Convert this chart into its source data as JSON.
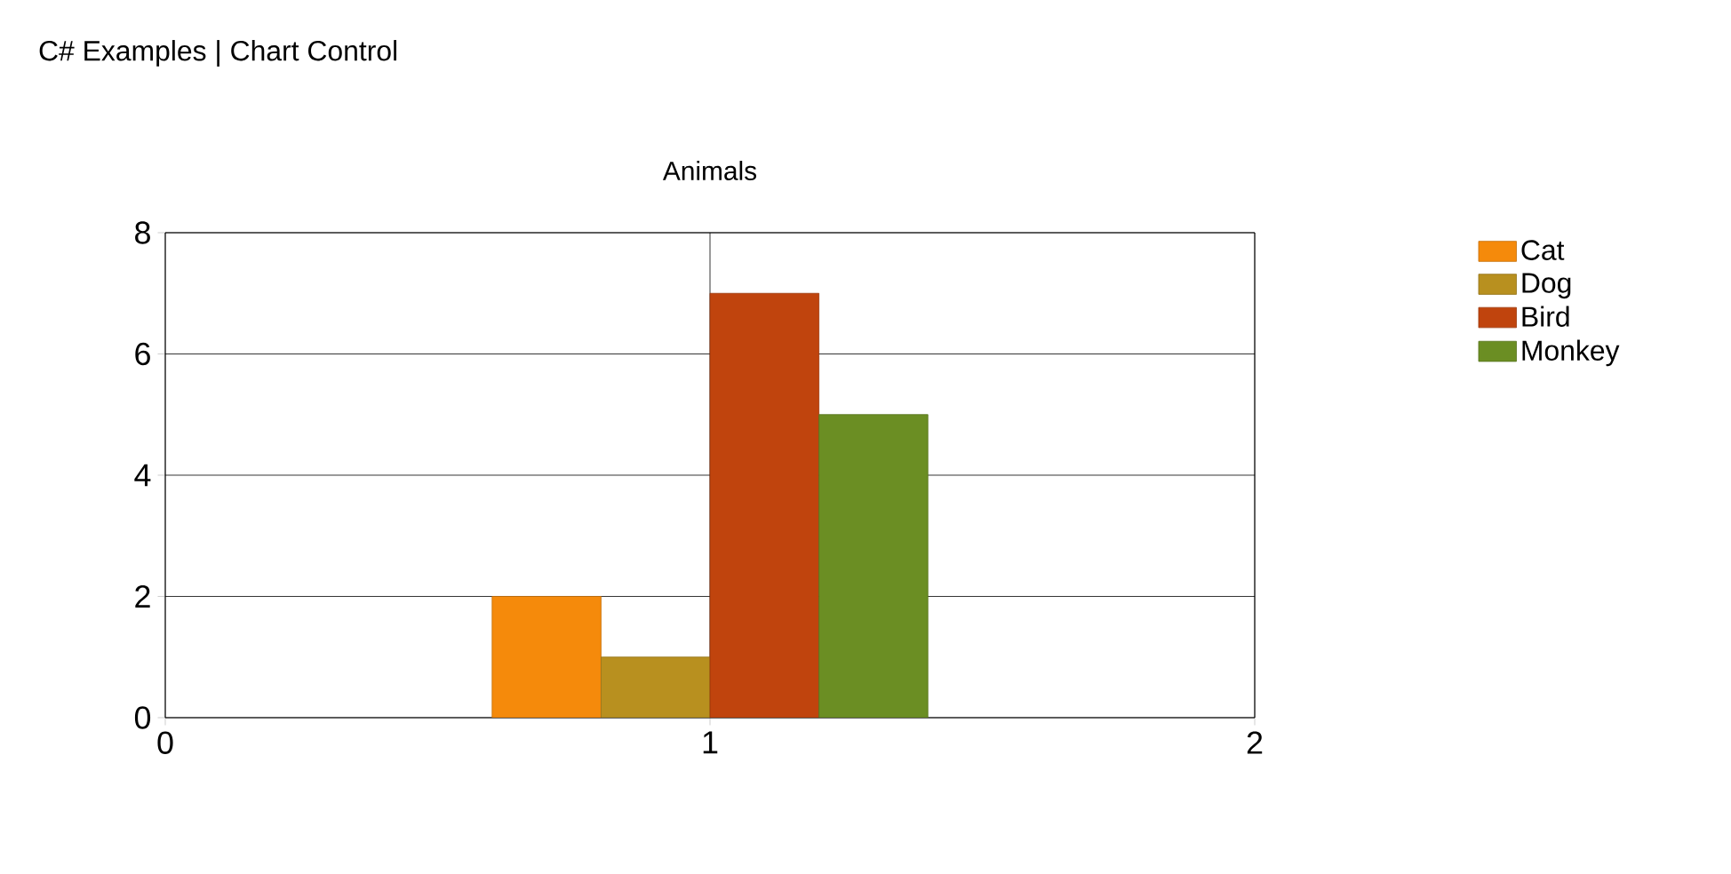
{
  "chart_data": {
    "type": "bar",
    "title": "Animals",
    "annotations": [
      "C# Examples | Chart Control"
    ],
    "series": [
      {
        "name": "Cat",
        "color": "#f58a0b",
        "x": [
          0.7
        ],
        "values": [
          2
        ]
      },
      {
        "name": "Dog",
        "color": "#b8901f",
        "x": [
          0.9
        ],
        "values": [
          1
        ]
      },
      {
        "name": "Bird",
        "color": "#c0440d",
        "x": [
          1.1
        ],
        "values": [
          7
        ]
      },
      {
        "name": "Monkey",
        "color": "#6b8e23",
        "x": [
          1.3
        ],
        "values": [
          5
        ]
      }
    ],
    "xlim": [
      0,
      2
    ],
    "xticks": [
      0,
      1,
      2
    ],
    "ylim": [
      0,
      8
    ],
    "yticks": [
      0,
      2,
      4,
      6,
      8
    ],
    "grid": true,
    "legend": "top right"
  }
}
